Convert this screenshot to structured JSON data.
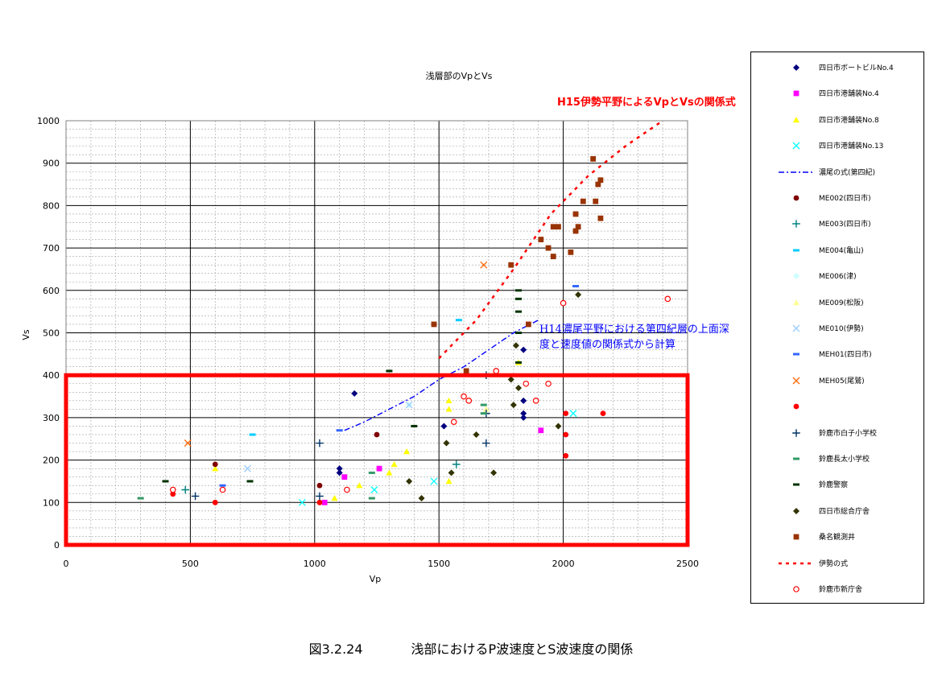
{
  "caption": {
    "figure_number": "図3.2.24",
    "text": "浅部におけるP波速度とS波速度の関係"
  },
  "annotations": {
    "red": "H15伊勢平野によるVpとVsの関係式",
    "blue": "H14濃尾平野における第四紀層の上面深度と速度値の関係式から計算"
  },
  "colors": {
    "highlight_box": "#ff0000",
    "grid": "#a0a0a0"
  },
  "chart_data": {
    "type": "scatter",
    "title": "浅層部のVpとVs",
    "xlabel": "Vp",
    "ylabel": "Vs",
    "xlim": [
      0,
      2500
    ],
    "ylim": [
      0,
      1000
    ],
    "x_ticks": [
      0,
      500,
      1000,
      1500,
      2000,
      2500
    ],
    "y_ticks": [
      0,
      100,
      200,
      300,
      400,
      500,
      600,
      700,
      800,
      900,
      1000
    ],
    "grid": true,
    "legend_position": "right",
    "highlight_region": {
      "x": [
        0,
        2500
      ],
      "y": [
        0,
        400
      ]
    },
    "series": [
      {
        "name": "四日市ボートビルNo.4",
        "marker": "diamond",
        "color": "#000080",
        "points": [
          [
            1160,
            357
          ],
          [
            1100,
            180
          ],
          [
            1100,
            170
          ],
          [
            1520,
            280
          ],
          [
            1840,
            460
          ],
          [
            1840,
            340
          ],
          [
            1840,
            310
          ],
          [
            1840,
            300
          ]
        ]
      },
      {
        "name": "四日市港舗装No.4",
        "marker": "square",
        "color": "#ff00ff",
        "points": [
          [
            1040,
            100
          ],
          [
            1120,
            160
          ],
          [
            1260,
            180
          ],
          [
            1910,
            270
          ]
        ]
      },
      {
        "name": "四日市港舗装No.8",
        "marker": "triangle",
        "color": "#ffff00",
        "points": [
          [
            600,
            180
          ],
          [
            1080,
            110
          ],
          [
            1180,
            140
          ],
          [
            1300,
            170
          ],
          [
            1320,
            190
          ],
          [
            1370,
            220
          ],
          [
            1540,
            340
          ],
          [
            1540,
            320
          ],
          [
            1540,
            150
          ],
          [
            1820,
            430
          ]
        ]
      },
      {
        "name": "四日市港舗装No.13",
        "marker": "x",
        "color": "#00ffff",
        "points": [
          [
            950,
            100
          ],
          [
            1240,
            130
          ],
          [
            1480,
            150
          ],
          [
            2040,
            310
          ]
        ]
      },
      {
        "name": "濃尾の式(第四紀)",
        "marker": "dashdot",
        "color": "#0000ff",
        "points": [
          [
            1120,
            270
          ],
          [
            1200,
            290
          ],
          [
            1300,
            320
          ],
          [
            1400,
            350
          ],
          [
            1500,
            390
          ],
          [
            1600,
            420
          ],
          [
            1700,
            460
          ],
          [
            1800,
            500
          ],
          [
            1900,
            530
          ]
        ]
      },
      {
        "name": "ME002(四日市)",
        "marker": "circle",
        "color": "#800000",
        "points": [
          [
            600,
            190
          ],
          [
            1020,
            140
          ],
          [
            1250,
            260
          ]
        ]
      },
      {
        "name": "ME003(四日市)",
        "marker": "plus",
        "color": "#008080",
        "points": [
          [
            480,
            130
          ],
          [
            1570,
            190
          ]
        ]
      },
      {
        "name": "ME004(亀山)",
        "marker": "dash",
        "color": "#00ccff",
        "points": [
          [
            750,
            260
          ],
          [
            1580,
            530
          ]
        ]
      },
      {
        "name": "ME006(津)",
        "marker": "diamond",
        "color": "#ccffff",
        "points": [
          [
            1380,
            330
          ]
        ]
      },
      {
        "name": "ME009(松阪)",
        "marker": "triangle",
        "color": "#ffff99",
        "points": [
          [
            1690,
            320
          ]
        ]
      },
      {
        "name": "ME010(伊勢)",
        "marker": "x",
        "color": "#99ccff",
        "points": [
          [
            730,
            180
          ],
          [
            1380,
            330
          ]
        ]
      },
      {
        "name": "MEH01(四日市)",
        "marker": "dash",
        "color": "#3366ff",
        "points": [
          [
            630,
            140
          ],
          [
            1100,
            270
          ],
          [
            2050,
            610
          ]
        ]
      },
      {
        "name": "MEH05(尾鷲)",
        "marker": "x",
        "color": "#ff6600",
        "points": [
          [
            490,
            240
          ],
          [
            1680,
            660
          ]
        ]
      },
      {
        "name": "",
        "marker": "circle",
        "color": "#ff0000",
        "points": [
          [
            430,
            120
          ],
          [
            600,
            100
          ],
          [
            1020,
            100
          ],
          [
            2010,
            310
          ],
          [
            2010,
            260
          ],
          [
            2010,
            210
          ],
          [
            2160,
            310
          ]
        ]
      },
      {
        "name": "鈴鹿市白子小学校",
        "marker": "plus",
        "color": "#003366",
        "points": [
          [
            520,
            115
          ],
          [
            1020,
            115
          ],
          [
            1020,
            240
          ],
          [
            1690,
            310
          ],
          [
            1690,
            400
          ],
          [
            1690,
            240
          ]
        ]
      },
      {
        "name": "鈴鹿長太小学校",
        "marker": "dash",
        "color": "#339966",
        "points": [
          [
            300,
            110
          ],
          [
            1230,
            110
          ],
          [
            1230,
            170
          ],
          [
            1680,
            330
          ],
          [
            1680,
            310
          ]
        ]
      },
      {
        "name": "鈴鹿警察",
        "marker": "dash",
        "color": "#003300",
        "points": [
          [
            400,
            150
          ],
          [
            740,
            150
          ],
          [
            1300,
            410
          ],
          [
            1400,
            280
          ],
          [
            1820,
            600
          ],
          [
            1820,
            580
          ],
          [
            1820,
            550
          ],
          [
            1820,
            500
          ],
          [
            1820,
            430
          ]
        ]
      },
      {
        "name": "四日市総合庁舎",
        "marker": "diamond",
        "color": "#333300",
        "points": [
          [
            1380,
            150
          ],
          [
            1430,
            110
          ],
          [
            1530,
            240
          ],
          [
            1550,
            170
          ],
          [
            1650,
            260
          ],
          [
            1720,
            170
          ],
          [
            1790,
            390
          ],
          [
            1800,
            330
          ],
          [
            1810,
            470
          ],
          [
            1820,
            370
          ],
          [
            1980,
            280
          ],
          [
            2060,
            590
          ]
        ]
      },
      {
        "name": "桑名観測井",
        "marker": "square",
        "color": "#993300",
        "points": [
          [
            1480,
            520
          ],
          [
            1610,
            410
          ],
          [
            1790,
            660
          ],
          [
            1910,
            720
          ],
          [
            1940,
            700
          ],
          [
            1960,
            680
          ],
          [
            1960,
            750
          ],
          [
            1980,
            750
          ],
          [
            2030,
            690
          ],
          [
            2050,
            740
          ],
          [
            2050,
            780
          ],
          [
            2060,
            750
          ],
          [
            2080,
            810
          ],
          [
            2120,
            910
          ],
          [
            2130,
            810
          ],
          [
            2140,
            850
          ],
          [
            2150,
            860
          ],
          [
            2150,
            770
          ],
          [
            1860,
            520
          ]
        ]
      },
      {
        "name": "伊勢の式",
        "marker": "dotline",
        "color": "#ff0000",
        "points": [
          [
            1500,
            440
          ],
          [
            1650,
            530
          ],
          [
            1800,
            650
          ],
          [
            1950,
            780
          ],
          [
            2100,
            870
          ],
          [
            2250,
            940
          ],
          [
            2400,
            1000
          ]
        ]
      },
      {
        "name": "鈴鹿市新庁舎",
        "marker": "open-circle",
        "color": "#ff0000",
        "points": [
          [
            430,
            130
          ],
          [
            630,
            130
          ],
          [
            1130,
            130
          ],
          [
            1560,
            290
          ],
          [
            1600,
            350
          ],
          [
            1620,
            340
          ],
          [
            1730,
            410
          ],
          [
            1850,
            380
          ],
          [
            1890,
            340
          ],
          [
            1940,
            380
          ],
          [
            2000,
            570
          ],
          [
            2420,
            580
          ]
        ]
      }
    ]
  }
}
